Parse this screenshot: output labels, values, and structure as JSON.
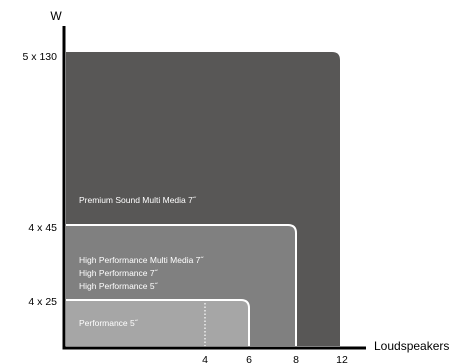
{
  "chart_data": {
    "type": "area",
    "ylabel": "W",
    "xlabel": "Loudspeakers",
    "y_ticks": [
      {
        "label": "4 x 25",
        "value": 100
      },
      {
        "label": "4 x 45",
        "value": 180
      },
      {
        "label": "5 x 130",
        "value": 650
      }
    ],
    "x_ticks": [
      4,
      6,
      8,
      12
    ],
    "tiers": [
      {
        "labels": [
          "Premium Sound Multi Media 7˝"
        ],
        "max_loudspeakers": 12,
        "max_power": "5 x 130",
        "color": "#585756"
      },
      {
        "labels": [
          "High Performance Multi Media 7˝",
          "High Performance 7˝",
          "High Performance 5˝"
        ],
        "max_loudspeakers": 8,
        "max_power": "4 x 45",
        "color": "#808080"
      },
      {
        "labels": [
          "Performance 5˝"
        ],
        "max_loudspeakers": 6,
        "max_power": "4 x 25",
        "color": "#a6a6a6",
        "dotted_marker_at": 4
      }
    ],
    "axis_color": "#000000",
    "outline_color": "#ffffff"
  }
}
